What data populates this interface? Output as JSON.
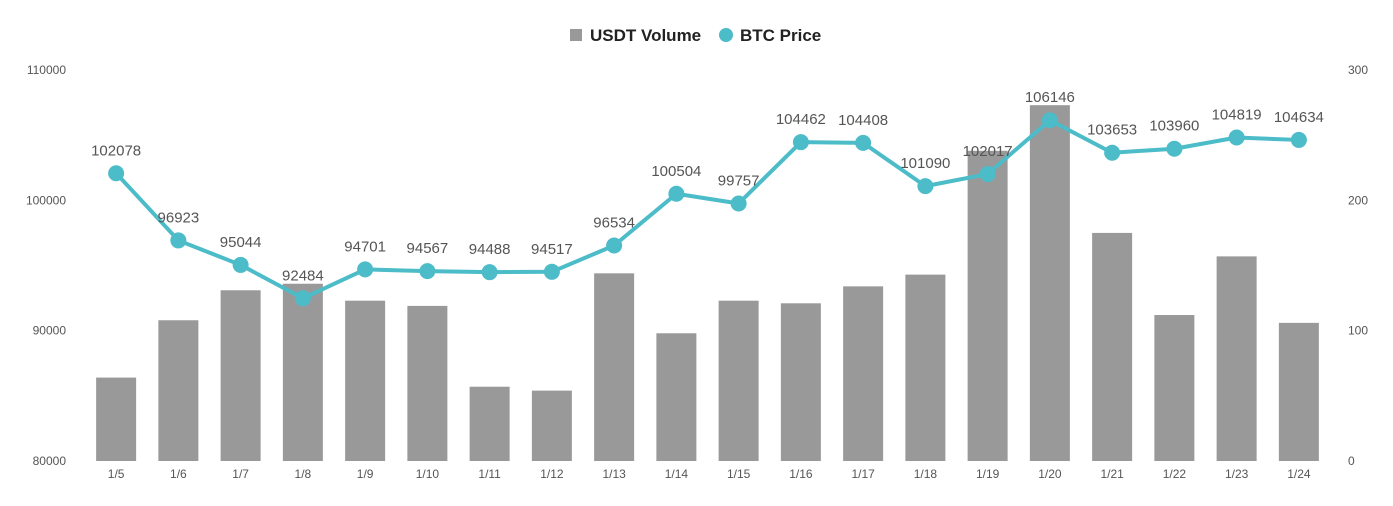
{
  "chart_data": {
    "type": "bar",
    "categories": [
      "1/5",
      "1/6",
      "1/7",
      "1/8",
      "1/9",
      "1/10",
      "1/11",
      "1/12",
      "1/13",
      "1/14",
      "1/15",
      "1/16",
      "1/17",
      "1/18",
      "1/19",
      "1/20",
      "1/21",
      "1/22",
      "1/23",
      "1/24"
    ],
    "series": [
      {
        "name": "USDT Volume",
        "type": "bar",
        "axis": "right",
        "color": "#999999",
        "values": [
          64,
          108,
          131,
          136,
          123,
          119,
          57,
          54,
          144,
          98,
          123,
          121,
          134,
          143,
          238,
          273,
          175,
          112,
          157,
          106
        ]
      },
      {
        "name": "BTC Price",
        "type": "line",
        "axis": "left",
        "color": "#4bbcc8",
        "values": [
          102078,
          96923,
          95044,
          92484,
          94701,
          94567,
          94488,
          94517,
          96534,
          100504,
          99757,
          104462,
          104408,
          101090,
          102017,
          106146,
          103653,
          103960,
          104819,
          104634
        ]
      }
    ],
    "y_left": {
      "min": 80000,
      "max": 110000,
      "ticks": [
        "80000",
        "90000",
        "100000",
        "110000"
      ]
    },
    "y_right": {
      "min": 0,
      "max": 300,
      "ticks": [
        "0",
        "100",
        "200",
        "300"
      ]
    },
    "legend_position": "top-center",
    "grid": false
  }
}
